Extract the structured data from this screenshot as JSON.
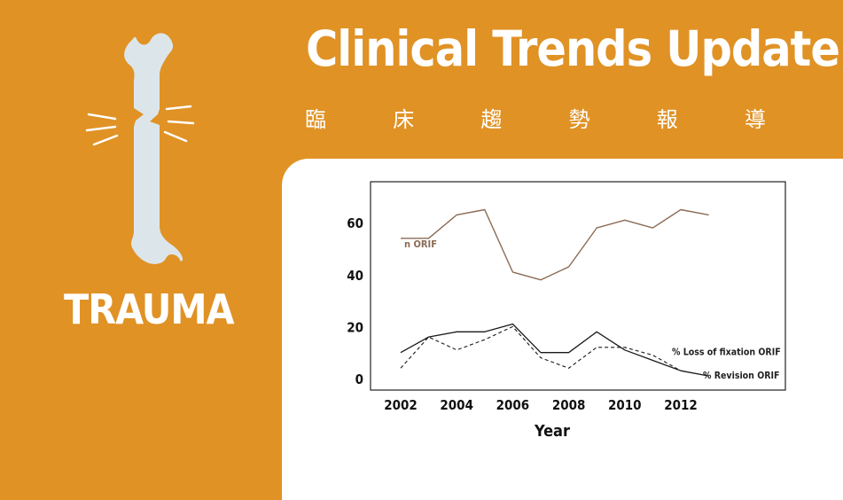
{
  "header": {
    "title": "Clinical Trends Update",
    "subtitle_chars": [
      "臨",
      "床",
      "趨",
      "勢",
      "報",
      "導"
    ]
  },
  "sidebar": {
    "label": "TRAUMA",
    "icon": "fractured-bone-icon"
  },
  "colors": {
    "background": "#E09225",
    "panel": "#FFFFFF",
    "n_orif_line": "#8B6B55",
    "revision_line": "#1A1A1A",
    "loss_line": "#1A1A1A",
    "icon": "#DCE6EA"
  },
  "chart_data": {
    "type": "line",
    "title": "",
    "xlabel": "Year",
    "ylabel": "",
    "xlim": [
      2002,
      2013
    ],
    "ylim": [
      0,
      70
    ],
    "x_ticks": [
      "2002",
      "2004",
      "2006",
      "2008",
      "2010",
      "2012"
    ],
    "y_ticks": [
      "0",
      "20",
      "40",
      "60"
    ],
    "x": [
      2002,
      2003,
      2004,
      2005,
      2006,
      2007,
      2008,
      2009,
      2010,
      2011,
      2012,
      2013
    ],
    "series": [
      {
        "name": "n ORIF",
        "style": "solid",
        "values": [
          54,
          54,
          63,
          65,
          41,
          38,
          43,
          58,
          61,
          58,
          65,
          63
        ]
      },
      {
        "name": "% Revision ORIF",
        "style": "solid",
        "values": [
          10,
          16,
          18,
          18,
          21,
          10,
          10,
          18,
          11,
          7,
          3,
          1
        ]
      },
      {
        "name": "% Loss of fixation ORIF",
        "style": "dashed",
        "values": [
          4,
          16,
          11,
          15,
          20,
          8,
          4,
          12,
          12,
          9,
          3,
          null
        ]
      }
    ]
  }
}
